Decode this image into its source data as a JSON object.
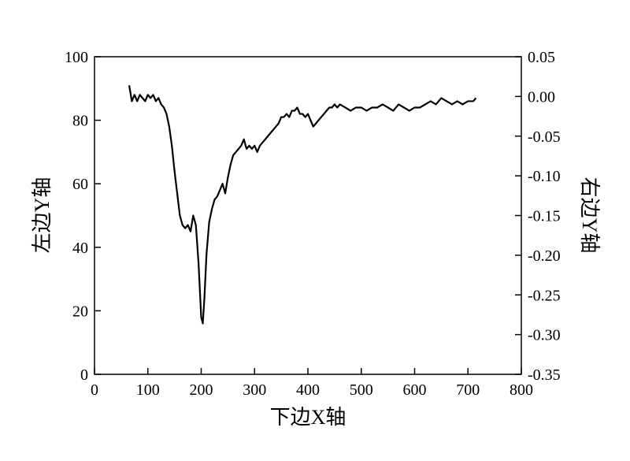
{
  "chart_data": {
    "type": "line",
    "xlabel": "下边X轴",
    "ylabel": "左边Y轴",
    "y2label": "右边Y轴",
    "xlim": [
      0,
      800
    ],
    "xticks": [
      0,
      100,
      200,
      300,
      400,
      500,
      600,
      700,
      800
    ],
    "ylim": [
      0,
      100
    ],
    "yticks": [
      0,
      20,
      40,
      60,
      80,
      100
    ],
    "y2lim": [
      -0.35,
      0.05
    ],
    "y2ticks": [
      0.05,
      {
        "value": 0,
        "label": "0.00"
      },
      -0.05,
      {
        "value": -0.1,
        "label": "-0.10"
      },
      -0.15,
      {
        "value": -0.2,
        "label": "-0.20"
      },
      -0.25,
      {
        "value": -0.3,
        "label": "-0.30"
      },
      -0.35
    ],
    "series": [
      {
        "color": "#000000",
        "x": [
          65,
          70,
          75,
          80,
          85,
          90,
          95,
          100,
          105,
          110,
          115,
          120,
          125,
          130,
          135,
          140,
          145,
          150,
          155,
          160,
          165,
          170,
          175,
          180,
          185,
          190,
          195,
          200,
          203,
          206,
          210,
          215,
          220,
          225,
          230,
          235,
          240,
          245,
          250,
          255,
          260,
          265,
          270,
          275,
          280,
          285,
          290,
          295,
          300,
          305,
          310,
          315,
          320,
          325,
          330,
          335,
          340,
          345,
          350,
          355,
          360,
          365,
          370,
          375,
          380,
          385,
          390,
          395,
          400,
          405,
          410,
          415,
          420,
          425,
          430,
          435,
          440,
          445,
          450,
          455,
          460,
          470,
          480,
          490,
          500,
          510,
          520,
          530,
          540,
          550,
          560,
          570,
          580,
          590,
          600,
          610,
          620,
          630,
          640,
          650,
          660,
          670,
          680,
          690,
          700,
          710,
          715
        ],
        "values": [
          91,
          86,
          88,
          86,
          88,
          87,
          86,
          88,
          87,
          88,
          86,
          87,
          85,
          84,
          82,
          78,
          72,
          64,
          57,
          50,
          47,
          46,
          47,
          45,
          50,
          47,
          35,
          18,
          16,
          24,
          38,
          48,
          52,
          55,
          56,
          58,
          60,
          57,
          62,
          66,
          69,
          70,
          71,
          72,
          74,
          71,
          72,
          71,
          72,
          70,
          72,
          73,
          74,
          75,
          76,
          77,
          78,
          79,
          81,
          81,
          82,
          81,
          83,
          83,
          84,
          82,
          82,
          81,
          82,
          80,
          78,
          79,
          80,
          81,
          82,
          83,
          84,
          84,
          85,
          84,
          85,
          84,
          83,
          84,
          84,
          83,
          84,
          84,
          85,
          84,
          83,
          85,
          84,
          83,
          84,
          84,
          85,
          86,
          85,
          87,
          86,
          85,
          86,
          85,
          86,
          86,
          87
        ]
      }
    ]
  }
}
